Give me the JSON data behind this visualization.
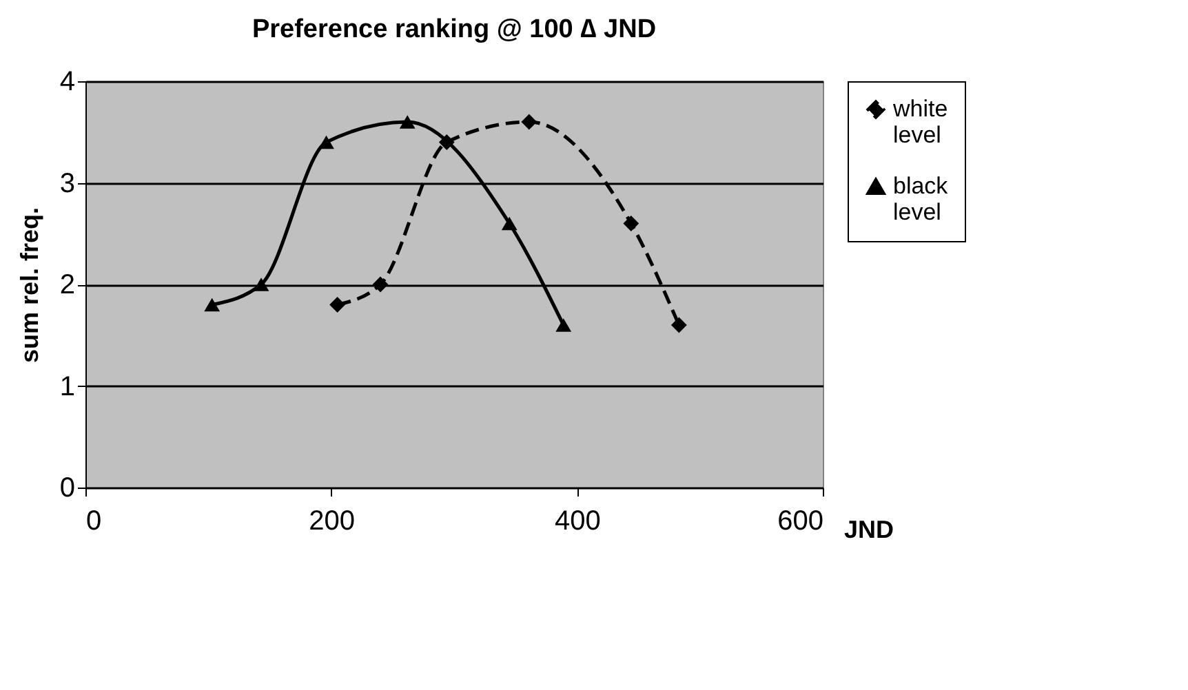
{
  "chart_data": {
    "type": "line",
    "title": "Preference ranking @ 100 ∆ JND",
    "xlabel": "JND",
    "ylabel": "sum rel. freq.",
    "xlim": [
      0,
      600
    ],
    "xticks": [
      0,
      200,
      400,
      600
    ],
    "ylim": [
      0,
      4
    ],
    "yticks": [
      0,
      1,
      2,
      3,
      4
    ],
    "grid": "y",
    "legend": "right",
    "series": [
      {
        "name": "white level",
        "color": "#000000",
        "marker": "diamond",
        "line_style": "dashed",
        "x": [
          205,
          240,
          294,
          361,
          444,
          483
        ],
        "values": [
          1.8,
          2.0,
          3.4,
          3.6,
          2.6,
          1.6
        ]
      },
      {
        "name": "black level",
        "color": "#000000",
        "marker": "triangle",
        "line_style": "solid",
        "x": [
          103,
          143,
          196,
          262,
          345,
          389
        ],
        "values": [
          1.8,
          2.0,
          3.4,
          3.6,
          2.6,
          1.6
        ]
      }
    ]
  }
}
